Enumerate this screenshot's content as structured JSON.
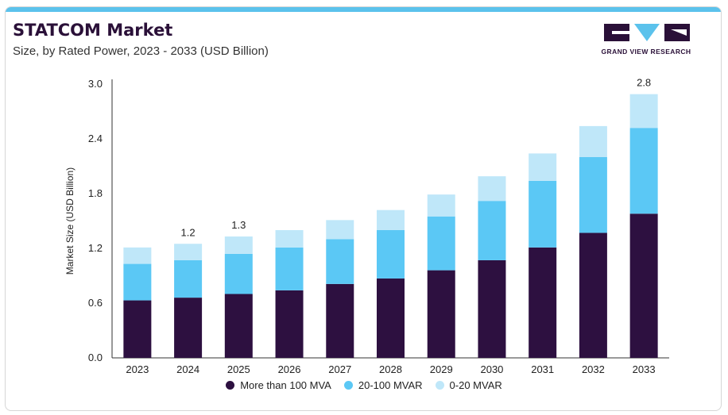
{
  "header": {
    "title": "STATCOM Market",
    "subtitle": "Size, by Rated Power, 2023 - 2033 (USD Billion)"
  },
  "brand": {
    "name": "GRAND VIEW RESEARCH",
    "logo_icon": "grand-view-research-logo",
    "colors": {
      "dark": "#2a1038",
      "accent": "#5bc2ec"
    }
  },
  "chart_data": {
    "type": "bar",
    "stacked": true,
    "categories": [
      "2023",
      "2024",
      "2025",
      "2026",
      "2027",
      "2028",
      "2029",
      "2030",
      "2031",
      "2032",
      "2033"
    ],
    "series": [
      {
        "name": "More than 100 MVA",
        "color": "#2d1040",
        "values": [
          0.63,
          0.66,
          0.7,
          0.74,
          0.81,
          0.87,
          0.96,
          1.07,
          1.21,
          1.37,
          1.58
        ]
      },
      {
        "name": "20-100 MVAR",
        "color": "#5bc8f5",
        "values": [
          0.4,
          0.41,
          0.44,
          0.47,
          0.49,
          0.53,
          0.59,
          0.65,
          0.73,
          0.83,
          0.94
        ]
      },
      {
        "name": "0-20 MVAR",
        "color": "#bfe7f9",
        "values": [
          0.18,
          0.18,
          0.19,
          0.19,
          0.21,
          0.22,
          0.24,
          0.27,
          0.3,
          0.34,
          0.37
        ]
      }
    ],
    "totals_labels": [
      {
        "category": "2024",
        "label": "1.2"
      },
      {
        "category": "2025",
        "label": "1.3"
      },
      {
        "category": "2033",
        "label": "2.8"
      }
    ],
    "ylabel": "Market Size (USD Billion)",
    "xlabel": "",
    "ylim": [
      0,
      3.0
    ],
    "yticks": [
      "0.0",
      "0.6",
      "1.2",
      "1.8",
      "2.4",
      "3.0"
    ],
    "grid": false,
    "legend_position": "bottom-center"
  }
}
